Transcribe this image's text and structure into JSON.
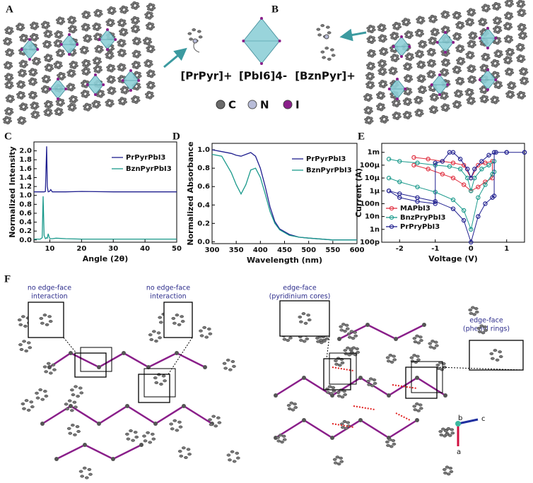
{
  "panel_labels": [
    "A",
    "B",
    "C",
    "D",
    "E",
    "F"
  ],
  "species": [
    "[PrPyr]+",
    "[PbI6]4-",
    "[BznPyr]+"
  ],
  "atoms": [
    "C",
    "N",
    "I"
  ],
  "annotations": [
    {
      "lines": [
        "no edge-face",
        "interaction"
      ]
    },
    {
      "lines": [
        "no edge-face",
        "interaction"
      ]
    },
    {
      "lines": [
        "edge-face",
        "(pyridinium cores)"
      ]
    },
    {
      "lines": [
        "edge-face",
        "(phenyl rings)"
      ]
    }
  ],
  "crystal_axes": [
    "b",
    "c",
    "a"
  ],
  "chart_data": [
    {
      "type": "line",
      "xlabel": "Angle (2θ)",
      "ylabel": "Normalized Intensity",
      "xlim": [
        5,
        50
      ],
      "xticks": [
        10,
        20,
        30,
        40,
        50
      ],
      "ylim": [
        -0.05,
        2.2
      ],
      "yticks": [
        {
          "value": 0,
          "label": "0.0"
        },
        0.2,
        0.4,
        0.6,
        0.8,
        {
          "value": 1,
          "label": "1.0"
        },
        1.2,
        1.4,
        1.6,
        1.8,
        {
          "value": 2,
          "label": "2.0"
        }
      ],
      "legend": "upper right",
      "x": [
        5,
        7,
        7.6,
        7.9,
        8.2,
        8.6,
        9.0,
        9.2,
        9.5,
        9.9,
        10.3,
        10.8,
        12,
        15,
        20,
        30,
        40,
        50
      ],
      "series": [
        {
          "name": "PrPyrPbI3",
          "color": "#1f1f8f",
          "values": [
            1.08,
            1.08,
            1.08,
            1.08,
            1.08,
            1.09,
            2.1,
            1.2,
            1.08,
            1.09,
            1.13,
            1.08,
            1.08,
            1.08,
            1.09,
            1.08,
            1.08,
            1.08
          ]
        },
        {
          "name": "BznPyrPbI3",
          "color": "#1b9a8c",
          "values": [
            0.02,
            0.02,
            0.05,
            0.98,
            0.1,
            0.03,
            0.05,
            0.04,
            0.14,
            0.04,
            0.03,
            0.03,
            0.04,
            0.03,
            0.02,
            0.02,
            0.02,
            0.02
          ]
        }
      ]
    },
    {
      "type": "line",
      "xlabel": "Wavelength (nm)",
      "ylabel": "Normalized Absorbance",
      "xlim": [
        300,
        600
      ],
      "xticks": [
        300,
        350,
        400,
        450,
        500,
        550,
        600
      ],
      "ylim": [
        -0.02,
        1.07
      ],
      "yticks": [
        {
          "value": 0,
          "label": "0.0"
        },
        0.2,
        0.4,
        0.6,
        0.8,
        {
          "value": 1,
          "label": "1.0"
        }
      ],
      "legend": "upper right",
      "x": [
        300,
        320,
        340,
        350,
        360,
        370,
        380,
        390,
        400,
        410,
        420,
        430,
        440,
        460,
        480,
        500,
        550,
        600
      ],
      "series": [
        {
          "name": "PrPyrPbI3",
          "color": "#1f1f8f",
          "values": [
            1.0,
            0.98,
            0.96,
            0.94,
            0.93,
            0.95,
            0.97,
            0.93,
            0.8,
            0.6,
            0.38,
            0.22,
            0.14,
            0.08,
            0.05,
            0.04,
            0.02,
            0.02
          ]
        },
        {
          "name": "BznPyrPbI3",
          "color": "#1b9a8c",
          "values": [
            0.95,
            0.93,
            0.75,
            0.62,
            0.52,
            0.62,
            0.78,
            0.8,
            0.7,
            0.52,
            0.33,
            0.2,
            0.13,
            0.07,
            0.05,
            0.04,
            0.02,
            0.02
          ]
        }
      ]
    },
    {
      "type": "line",
      "xlabel": "Voltage (V)",
      "ylabel": "Current (A)",
      "log_y": true,
      "markers": true,
      "xlim": [
        -2.5,
        1.5
      ],
      "xticks": [
        -2,
        -1,
        0,
        1
      ],
      "ylim": [
        1e-10,
        0.005
      ],
      "yticks": [
        {
          "value": 1e-10,
          "label": "100p"
        },
        {
          "value": 1e-09,
          "label": "1n"
        },
        {
          "value": 1e-08,
          "label": "10n"
        },
        {
          "value": 1e-07,
          "label": "100n"
        },
        {
          "value": 1e-06,
          "label": "1µ"
        },
        {
          "value": 1e-05,
          "label": "10µ"
        },
        {
          "value": 0.0001,
          "label": "100µ"
        },
        {
          "value": 0.001,
          "label": "1m"
        }
      ],
      "legend": "lower left",
      "series": [
        {
          "name": "MAPbI3",
          "color": "#e03040",
          "x": [
            -1.6,
            -1.2,
            -0.8,
            -0.5,
            -0.2,
            0,
            0.2,
            0.4,
            0.6,
            0.6,
            0.4,
            0.2,
            0,
            -0.2,
            -0.5,
            -0.8,
            -1.2,
            -1.6
          ],
          "values": [
            0.0001,
            5e-05,
            2e-05,
            1e-05,
            3e-06,
            1e-06,
            2e-06,
            5e-06,
            1e-05,
            0.0002,
            0.00015,
            0.0001,
            1e-05,
            0.0001,
            0.00015,
            0.0002,
            0.0003,
            0.0004
          ]
        },
        {
          "name": "BnzPryPbI3",
          "color": "#1b9a8c",
          "x": [
            -2.3,
            -2,
            -1.5,
            -1,
            -0.5,
            -0.2,
            0,
            0.2,
            0.4,
            0.6,
            0.65,
            0.65,
            0.5,
            0.3,
            0.1,
            0,
            -0.1,
            -0.3,
            -0.6,
            -1,
            -1.5,
            -2,
            -2.3
          ],
          "values": [
            1e-05,
            5e-06,
            2e-06,
            8e-07,
            2e-07,
            3e-08,
            1e-09,
            3e-07,
            3e-06,
            2e-05,
            3e-05,
            0.0002,
            0.0001,
            5e-05,
            1e-05,
            1e-06,
            1e-05,
            5e-05,
            8e-05,
            0.0001,
            0.00015,
            0.0002,
            0.0003
          ]
        },
        {
          "name": "PrPryPbI3",
          "color": "#1f1f8f",
          "x": [
            -2.3,
            -2,
            -1.5,
            -1.0,
            -0.5,
            -0.2,
            0,
            0.2,
            0.4,
            0.6,
            0.65,
            0.65,
            1,
            1.5,
            1.5,
            1,
            0.7,
            0.5,
            0.3,
            0.1,
            0,
            -0.1,
            -0.3,
            -0.5,
            -0.6,
            -0.8,
            -1.0,
            -1.0,
            -1.5,
            -2,
            -2.3
          ],
          "values": [
            1e-06,
            6e-07,
            3e-07,
            1.5e-07,
            4e-08,
            5e-09,
            1e-10,
            1e-08,
            1e-07,
            3e-07,
            4e-07,
            0.001,
            0.001,
            0.001,
            0.001,
            0.001,
            0.001,
            0.0006,
            0.0002,
            5e-05,
            1e-05,
            5e-05,
            0.0003,
            0.001,
            0.001,
            0.0002,
            0.00015,
            1e-07,
            1.5e-07,
            3e-07,
            1e-06
          ]
        }
      ]
    }
  ]
}
